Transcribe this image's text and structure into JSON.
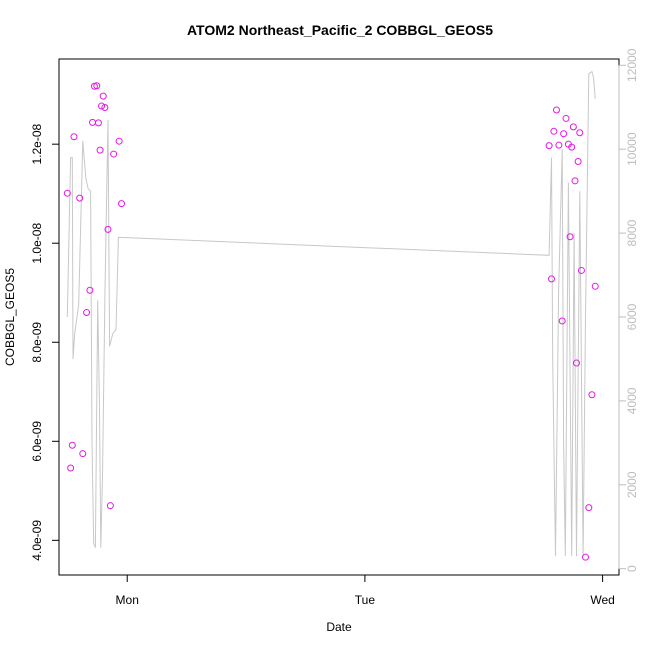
{
  "chart_data": {
    "type": "scatter",
    "title": "ATOM2 Northeast_Pacific_2 COBBGL_GEOS5",
    "xlabel": "Date",
    "ylabel": "COBBGL_GEOS5",
    "x_ticks": [
      {
        "label": "Mon",
        "value": 0
      },
      {
        "label": "Tue",
        "value": 1
      },
      {
        "label": "Wed",
        "value": 2
      }
    ],
    "xlim": [
      -0.287,
      2.069
    ],
    "ylim": [
      3.3e-09,
      1.372e-08
    ],
    "y_ticks": [
      {
        "label": "4.0e-09",
        "value": 4e-09
      },
      {
        "label": "6.0e-09",
        "value": 6e-09
      },
      {
        "label": "8.0e-09",
        "value": 8e-09
      },
      {
        "label": "1.0e-08",
        "value": 1e-08
      },
      {
        "label": "1.2e-08",
        "value": 1.2e-08
      }
    ],
    "y2lim": [
      -150,
      12150
    ],
    "y2_ticks": [
      {
        "label": "0",
        "value": 0
      },
      {
        "label": "2000",
        "value": 2000
      },
      {
        "label": "4000",
        "value": 4000
      },
      {
        "label": "6000",
        "value": 6000
      },
      {
        "label": "8000",
        "value": 8000
      },
      {
        "label": "10000",
        "value": 10000
      },
      {
        "label": "12000",
        "value": 12000
      }
    ],
    "colors": {
      "points": "#e619e6",
      "altitude_line": "#c8c8c8",
      "axis": "#000000",
      "right_axis": "#bdbdbd"
    },
    "series": [
      {
        "kind": "points",
        "axis": "left",
        "points": [
          {
            "x": -0.252,
            "y": 1.101e-08
          },
          {
            "x": -0.238,
            "y": 5.46e-09
          },
          {
            "x": -0.231,
            "y": 5.92e-09
          },
          {
            "x": -0.224,
            "y": 1.215e-08
          },
          {
            "x": -0.2,
            "y": 1.091e-08
          },
          {
            "x": -0.187,
            "y": 5.75e-09
          },
          {
            "x": -0.171,
            "y": 8.6e-09
          },
          {
            "x": -0.157,
            "y": 9.05e-09
          },
          {
            "x": -0.146,
            "y": 1.244e-08
          },
          {
            "x": -0.138,
            "y": 1.317e-08
          },
          {
            "x": -0.128,
            "y": 1.318e-08
          },
          {
            "x": -0.121,
            "y": 1.243e-08
          },
          {
            "x": -0.114,
            "y": 1.188e-08
          },
          {
            "x": -0.108,
            "y": 1.277e-08
          },
          {
            "x": -0.101,
            "y": 1.297e-08
          },
          {
            "x": -0.094,
            "y": 1.274e-08
          },
          {
            "x": -0.081,
            "y": 1.028e-08
          },
          {
            "x": -0.071,
            "y": 4.7e-09
          },
          {
            "x": -0.057,
            "y": 1.18e-08
          },
          {
            "x": -0.034,
            "y": 1.206e-08
          },
          {
            "x": -0.024,
            "y": 1.08e-08
          },
          {
            "x": 1.775,
            "y": 1.197e-08
          },
          {
            "x": 1.785,
            "y": 9.28e-09
          },
          {
            "x": 1.795,
            "y": 1.226e-08
          },
          {
            "x": 1.806,
            "y": 1.269e-08
          },
          {
            "x": 1.816,
            "y": 1.198e-08
          },
          {
            "x": 1.83,
            "y": 8.43e-09
          },
          {
            "x": 1.836,
            "y": 1.221e-08
          },
          {
            "x": 1.846,
            "y": 1.252e-08
          },
          {
            "x": 1.856,
            "y": 1.2e-08
          },
          {
            "x": 1.863,
            "y": 1.013e-08
          },
          {
            "x": 1.87,
            "y": 1.194e-08
          },
          {
            "x": 1.877,
            "y": 1.235e-08
          },
          {
            "x": 1.884,
            "y": 1.126e-08
          },
          {
            "x": 1.89,
            "y": 7.58e-09
          },
          {
            "x": 1.897,
            "y": 1.165e-08
          },
          {
            "x": 1.904,
            "y": 1.223e-08
          },
          {
            "x": 1.911,
            "y": 9.45e-09
          },
          {
            "x": 1.928,
            "y": 3.66e-09
          },
          {
            "x": 1.942,
            "y": 4.66e-09
          },
          {
            "x": 1.955,
            "y": 6.94e-09
          },
          {
            "x": 1.969,
            "y": 9.13e-09
          }
        ]
      },
      {
        "kind": "line",
        "axis": "right",
        "points": [
          {
            "x": -0.252,
            "y": 6000
          },
          {
            "x": -0.238,
            "y": 9800
          },
          {
            "x": -0.231,
            "y": 9800
          },
          {
            "x": -0.228,
            "y": 5000
          },
          {
            "x": -0.221,
            "y": 5600
          },
          {
            "x": -0.204,
            "y": 6300
          },
          {
            "x": -0.187,
            "y": 10200
          },
          {
            "x": -0.174,
            "y": 9300
          },
          {
            "x": -0.164,
            "y": 9050
          },
          {
            "x": -0.154,
            "y": 9000
          },
          {
            "x": -0.148,
            "y": 3000
          },
          {
            "x": -0.141,
            "y": 600
          },
          {
            "x": -0.134,
            "y": 500
          },
          {
            "x": -0.124,
            "y": 6400
          },
          {
            "x": -0.117,
            "y": 4000
          },
          {
            "x": -0.111,
            "y": 500
          },
          {
            "x": -0.104,
            "y": 2200
          },
          {
            "x": -0.094,
            "y": 6500
          },
          {
            "x": -0.081,
            "y": 10700
          },
          {
            "x": -0.074,
            "y": 5300
          },
          {
            "x": -0.061,
            "y": 5600
          },
          {
            "x": -0.047,
            "y": 5700
          },
          {
            "x": -0.037,
            "y": 7900
          },
          {
            "x": 1.775,
            "y": 7470
          },
          {
            "x": 1.785,
            "y": 9800
          },
          {
            "x": 1.79,
            "y": 5000
          },
          {
            "x": 1.802,
            "y": 300
          },
          {
            "x": 1.815,
            "y": 6600
          },
          {
            "x": 1.83,
            "y": 10000
          },
          {
            "x": 1.836,
            "y": 3000
          },
          {
            "x": 1.843,
            "y": 300
          },
          {
            "x": 1.856,
            "y": 9200
          },
          {
            "x": 1.87,
            "y": 300
          },
          {
            "x": 1.88,
            "y": 8000
          },
          {
            "x": 1.89,
            "y": 300
          },
          {
            "x": 1.904,
            "y": 9000
          },
          {
            "x": 1.918,
            "y": 300
          },
          {
            "x": 1.928,
            "y": 6000
          },
          {
            "x": 1.942,
            "y": 11800
          },
          {
            "x": 1.955,
            "y": 11850
          },
          {
            "x": 1.962,
            "y": 11700
          },
          {
            "x": 1.969,
            "y": 11200
          }
        ]
      }
    ]
  }
}
